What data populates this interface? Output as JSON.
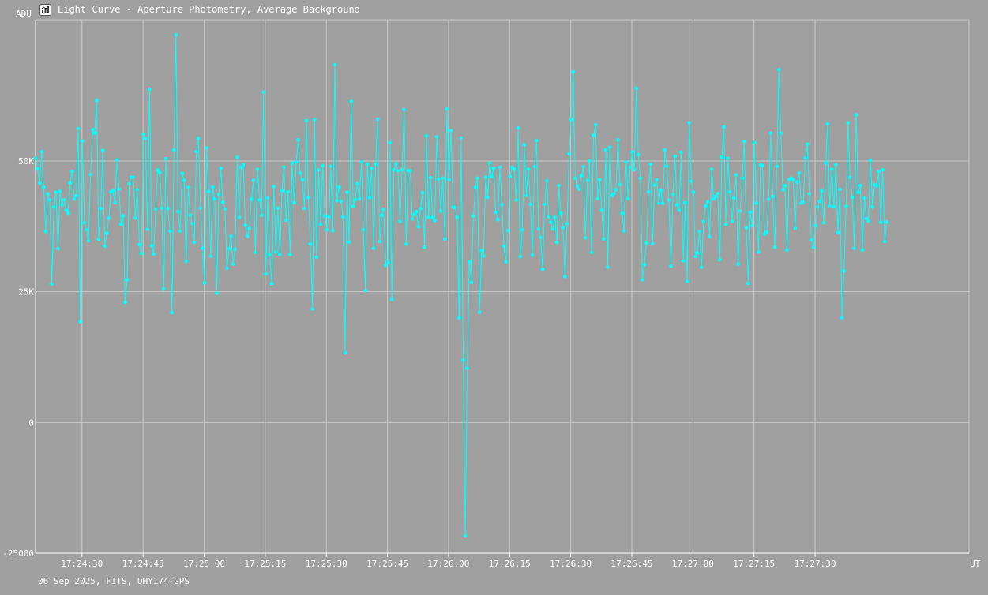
{
  "window": {
    "title": "Light Curve - Aperture Photometry, Average Background",
    "icon": "chart-icon"
  },
  "footer_text": "06 Sep 2025, FITS, QHY174-GPS",
  "colors": {
    "background": "#a0a0a0",
    "grid": "#c8c8c8",
    "series": "#00ffff",
    "text": "#ffffff"
  },
  "chart_data": {
    "type": "line",
    "title": "Light Curve - Aperture Photometry, Average Background",
    "ylabel": "ADU",
    "xlabel": "UT",
    "ylim": [
      -25000,
      77000
    ],
    "xlim": [
      "17:24:18.6",
      "17:28:07.8"
    ],
    "y_ticks": [
      {
        "value": 50000,
        "label": "50K"
      },
      {
        "value": 25000,
        "label": "25K"
      },
      {
        "value": 0,
        "label": "0"
      },
      {
        "value": -25000,
        "label": "-25000"
      }
    ],
    "x_ticks": [
      "17:24:30",
      "17:24:45",
      "17:25:00",
      "17:25:15",
      "17:25:30",
      "17:25:45",
      "17:26:00",
      "17:26:15",
      "17:26:30",
      "17:26:45",
      "17:27:00",
      "17:27:15",
      "17:27:30"
    ],
    "grid": true,
    "legend": "none",
    "sample_interval_s": 0.5,
    "series": [
      {
        "values": [
          50500,
          48500,
          45700,
          51800,
          45000,
          36500,
          43700,
          42500,
          26500,
          41200,
          44000,
          33200,
          44200,
          41600,
          42600,
          40600,
          40000,
          45800,
          48000,
          42700,
          43300,
          56200,
          19300,
          53800,
          38200,
          36800,
          34700,
          47400,
          56000,
          55300,
          61600,
          35000,
          40900,
          52000,
          33700,
          36200,
          39100,
          44100,
          44300,
          42000,
          50200,
          44600,
          37900,
          39500,
          23000,
          27300,
          45600,
          46900,
          46900,
          39100,
          44500,
          34000,
          32300,
          55100,
          54300,
          36900,
          63700,
          33800,
          32200,
          40800,
          48300,
          47800,
          41000,
          25500,
          50400,
          40900,
          36600,
          21000,
          52100,
          74100,
          40300,
          36600,
          47600,
          46300,
          30800,
          45000,
          39600,
          38000,
          34400,
          51800,
          54300,
          41000,
          33300,
          26700,
          52500,
          44200,
          31800,
          45000,
          42700,
          24700,
          43600,
          48600,
          42100,
          40800,
          29500,
          33200,
          35600,
          30300,
          33100,
          50700,
          39200,
          48800,
          49300,
          37700,
          35600,
          37100,
          42700,
          46300,
          32500,
          48400,
          42500,
          39600,
          63200,
          28400,
          42900,
          32100,
          26600,
          45100,
          32600,
          41000,
          32100,
          44300,
          48800,
          38700,
          44100,
          32100,
          49600,
          42000,
          49800,
          54000,
          47600,
          46400,
          40900,
          57700,
          43000,
          34100,
          21700,
          57900,
          31600,
          48300,
          37900,
          49100,
          39500,
          36800,
          39300,
          49000,
          36700,
          68400,
          42400,
          45000,
          42300,
          39300,
          13300,
          44000,
          34500,
          61400,
          41300,
          42600,
          45600,
          42700,
          49800,
          36800,
          25200,
          49400,
          43000,
          48600,
          33300,
          49400,
          58000,
          34600,
          39600,
          40800,
          30000,
          30600,
          53500,
          23500,
          48300,
          49500,
          48100,
          38400,
          48300,
          59800,
          34100,
          48200,
          48100,
          38900,
          39800,
          40300,
          37400,
          40900,
          43900,
          33500,
          54800,
          39200,
          46800,
          39200,
          38600,
          54600,
          46500,
          40400,
          46700,
          35100,
          59900,
          46400,
          55800,
          41200,
          41100,
          39200,
          20000,
          54400,
          11900,
          -21700,
          10400,
          30700,
          26800,
          39500,
          44900,
          46700,
          21100,
          32900,
          31800,
          46900,
          43100,
          49600,
          47000,
          48600,
          40200,
          38800,
          48800,
          41600,
          33700,
          30700,
          36700,
          47000,
          48800,
          48400,
          42500,
          56300,
          31700,
          36800,
          53100,
          43400,
          48400,
          41700,
          32000,
          48900,
          53900,
          37000,
          35400,
          29300,
          41700,
          46200,
          39300,
          38300,
          37000,
          39200,
          34400,
          45300,
          40000,
          37200,
          27900,
          38000,
          51300,
          57900,
          67000,
          46700,
          45200,
          44600,
          47200,
          48900,
          35300,
          46300,
          50000,
          32500,
          54900,
          56900,
          42800,
          46400,
          40600,
          35100,
          52100,
          29700,
          52600,
          43300,
          43700,
          44500,
          54000,
          45500,
          40000,
          36600,
          49800,
          42800,
          48800,
          51700,
          48300,
          63900,
          51200,
          46700,
          27300,
          30200,
          34300,
          44100,
          49400,
          34200,
          45400,
          46400,
          41900,
          44400,
          41900,
          52100,
          49000,
          42500,
          29900,
          43600,
          50900,
          41600,
          40600,
          51700,
          30900,
          42000,
          27000,
          57300,
          46100,
          44000,
          31700,
          32400,
          36500,
          29700,
          38400,
          41400,
          42200,
          35500,
          48400,
          42700,
          43200,
          43800,
          31100,
          50700,
          56500,
          37900,
          50500,
          44100,
          38400,
          42900,
          47300,
          30300,
          40400,
          46700,
          53700,
          37200,
          26600,
          40200,
          37600,
          53500,
          41900,
          32600,
          49200,
          49100,
          36000,
          36400,
          42700,
          55300,
          43200,
          33500,
          49000,
          67500,
          55300,
          44500,
          45300,
          33000,
          46400,
          46700,
          46400,
          37100,
          46000,
          47700,
          41900,
          42100,
          50600,
          53200,
          43700,
          34900,
          33500,
          37600,
          41200,
          42300,
          44300,
          38200,
          49600,
          57100,
          41400,
          48400,
          41200,
          49300,
          36300,
          44600,
          20000,
          29000,
          41300,
          57300,
          46800,
          43100,
          33300,
          58800,
          44000,
          45300,
          33000,
          42900,
          39000,
          38500,
          50100,
          41200,
          45500,
          45200,
          48000,
          38300,
          48300,
          34600,
          38300
        ],
        "color": "#00ffff"
      }
    ]
  }
}
